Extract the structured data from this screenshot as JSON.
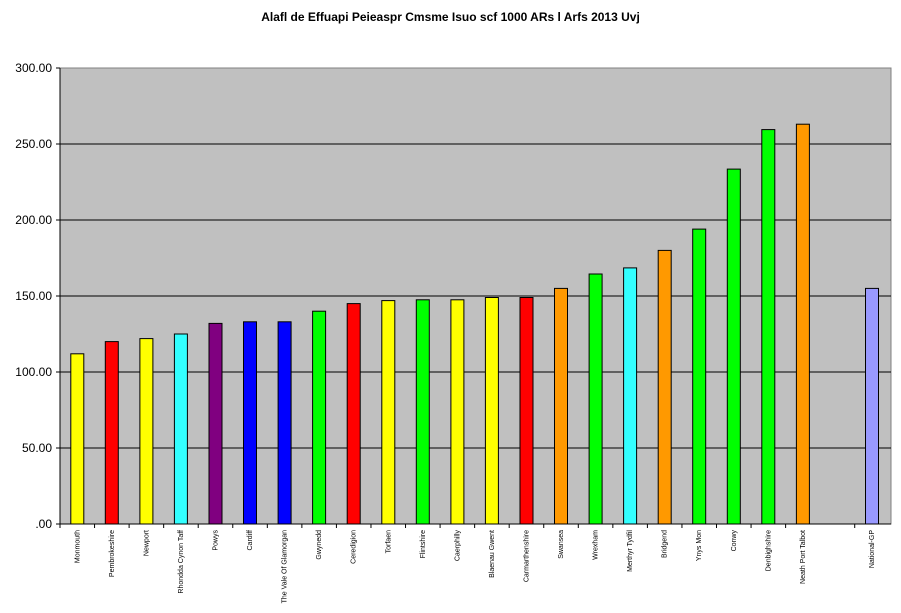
{
  "chart_data": {
    "type": "bar",
    "title": "Alafl de Effuapi Peieaspr Cmsme Isuo scf 1000 ARs l Arfs 2013 Uvj",
    "xlabel": "",
    "ylabel": "",
    "ylim": [
      0,
      300
    ],
    "yticks": [
      ".00",
      "50.00",
      "100.00",
      "150.00",
      "200.00",
      "250.00",
      "300.00"
    ],
    "grid": true,
    "legend": "none",
    "plot_background": "#c0c0c0",
    "categories": [
      "Monmouth",
      "Pembrokeshire",
      "Newport",
      "Rhondda Cynon Taff",
      "Powys",
      "Cardiff",
      "The Vale Of Glamorgan",
      "Gwynedd",
      "Ceredigion",
      "Torfaen",
      "Flintshire",
      "Caerphilly",
      "Blaenau Gwent",
      "Carmarthenshire",
      "Swansea",
      "Wrexham",
      "Merthyr Tydfil",
      "Bridgend",
      "Ynys Mon",
      "Conwy",
      "Denbighshire",
      "Neath Port Talbot",
      "National-GP"
    ],
    "values": [
      112,
      120,
      122,
      125,
      132,
      133,
      133,
      140,
      145,
      147,
      147.5,
      147.5,
      149,
      149,
      155,
      164.5,
      168.5,
      180,
      194,
      233.5,
      259.5,
      263,
      155
    ],
    "colors": [
      "#ffff00",
      "#ff0000",
      "#ffff00",
      "#33ffff",
      "#800080",
      "#0000ff",
      "#0000ff",
      "#00ff00",
      "#ff0000",
      "#ffff00",
      "#00ff00",
      "#ffff00",
      "#ffff00",
      "#ff0000",
      "#ff9900",
      "#00ff00",
      "#33ffff",
      "#ff9900",
      "#00ff00",
      "#00ff00",
      "#00ff00",
      "#ff9900",
      "#9999ff"
    ]
  }
}
